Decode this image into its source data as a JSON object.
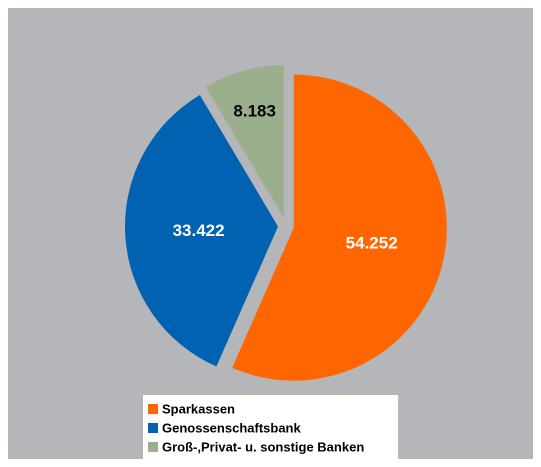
{
  "chart_data": {
    "type": "pie",
    "categories": [
      "Sparkassen",
      "Genossenschaftsbank",
      "Groß-,Privat- u. sonstige Banken"
    ],
    "values": [
      54.252,
      33.422,
      8.183
    ],
    "colors": [
      "#ff6600",
      "#0062b1",
      "#9caf8c"
    ],
    "label_colors": [
      "#ffffff",
      "#ffffff",
      "#000000"
    ],
    "legend": "bottom"
  }
}
